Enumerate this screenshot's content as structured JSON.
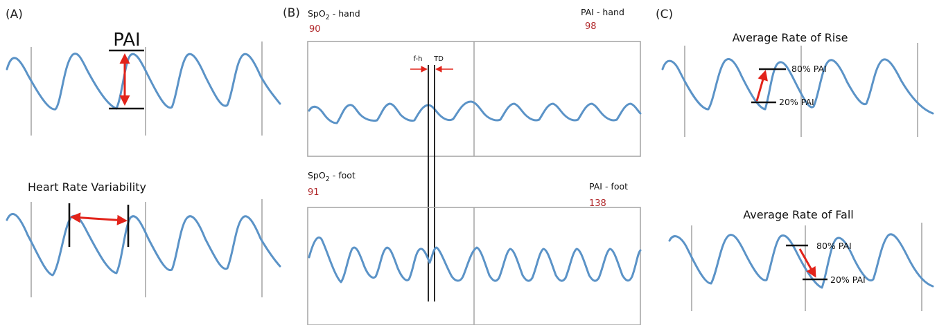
{
  "panels": {
    "a": {
      "label": "(A)",
      "pai_label": "PAI",
      "hrv_label": "Heart Rate Variability"
    },
    "b": {
      "label": "(B)",
      "spo2_hand_prefix": "SpO",
      "spo2_hand_sub": "2",
      "spo2_hand_suffix": " - hand",
      "spo2_hand_value": "90",
      "pai_hand_label": "PAI - hand",
      "pai_hand_value": "98",
      "spo2_foot_prefix": "SpO",
      "spo2_foot_sub": "2",
      "spo2_foot_suffix": " - foot",
      "spo2_foot_value": "91",
      "pai_foot_label": "PAI - foot",
      "pai_foot_value": "138",
      "fh_label": "f-h",
      "td_label": "TD"
    },
    "c": {
      "label": "(C)",
      "rise_title": "Average Rate of Rise",
      "fall_title": "Average Rate of Fall",
      "rise_80": "80% PAI",
      "rise_20": "20% PAI",
      "fall_80": "80% PAI",
      "fall_20": "20% PAI"
    }
  },
  "colors": {
    "waveform": "#5b93c7",
    "arrow": "#e2231a",
    "value_text": "#b0272a"
  }
}
